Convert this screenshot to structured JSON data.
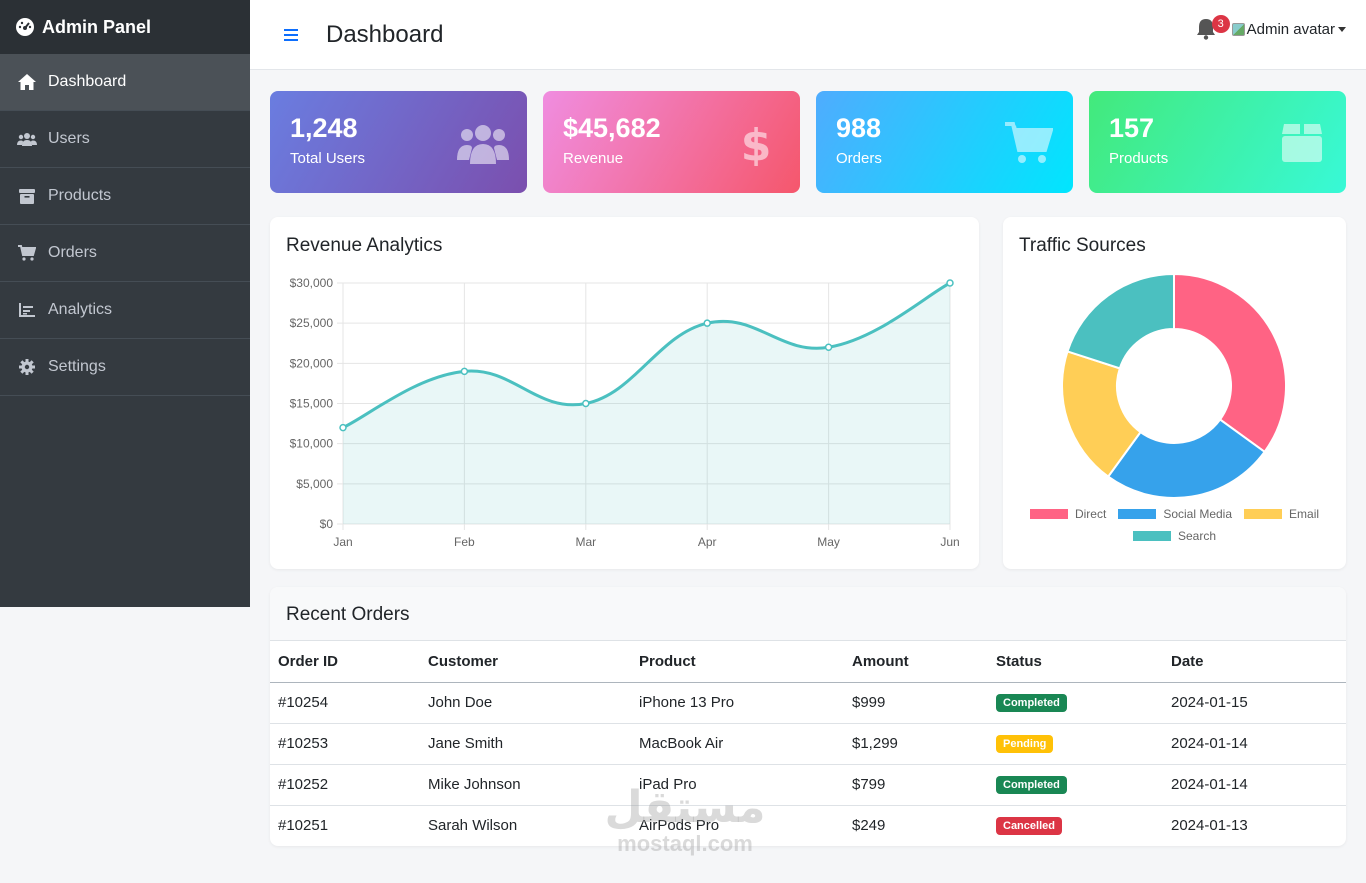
{
  "sidebar": {
    "brand": "Admin Panel",
    "items": [
      {
        "label": "Dashboard",
        "icon": "home-icon",
        "active": true
      },
      {
        "label": "Users",
        "icon": "users-icon"
      },
      {
        "label": "Products",
        "icon": "box-icon"
      },
      {
        "label": "Orders",
        "icon": "cart-icon"
      },
      {
        "label": "Analytics",
        "icon": "chart-icon"
      },
      {
        "label": "Settings",
        "icon": "gear-icon"
      }
    ]
  },
  "header": {
    "title": "Dashboard",
    "notification_count": "3",
    "avatar_alt": "Admin avatar"
  },
  "stats": [
    {
      "value": "1,248",
      "label": "Total Users"
    },
    {
      "value": "$45,682",
      "label": "Revenue"
    },
    {
      "value": "988",
      "label": "Orders"
    },
    {
      "value": "157",
      "label": "Products"
    }
  ],
  "revenue_chart": {
    "title": "Revenue Analytics"
  },
  "traffic_chart": {
    "title": "Traffic Sources"
  },
  "chart_data": [
    {
      "type": "line",
      "title": "Revenue Analytics",
      "categories": [
        "Jan",
        "Feb",
        "Mar",
        "Apr",
        "May",
        "Jun"
      ],
      "values": [
        12000,
        19000,
        15000,
        25000,
        22000,
        30000
      ],
      "ylim": [
        0,
        30000
      ],
      "yticks": [
        "$0",
        "$5,000",
        "$10,000",
        "$15,000",
        "$20,000",
        "$25,000",
        "$30,000"
      ],
      "color": "#4bc0c0",
      "grid": true
    },
    {
      "type": "pie",
      "title": "Traffic Sources",
      "categories": [
        "Direct",
        "Social Media",
        "Email",
        "Search"
      ],
      "values": [
        35,
        25,
        20,
        20
      ],
      "colors": [
        "#ff6384",
        "#36a2eb",
        "#ffce56",
        "#4bc0c0"
      ],
      "legend": "bottom"
    }
  ],
  "orders": {
    "title": "Recent Orders",
    "columns": [
      "Order ID",
      "Customer",
      "Product",
      "Amount",
      "Status",
      "Date"
    ],
    "rows": [
      {
        "id": "#10254",
        "customer": "John Doe",
        "product": "iPhone 13 Pro",
        "amount": "$999",
        "status": "Completed",
        "date": "2024-01-15"
      },
      {
        "id": "#10253",
        "customer": "Jane Smith",
        "product": "MacBook Air",
        "amount": "$1,299",
        "status": "Pending",
        "date": "2024-01-14"
      },
      {
        "id": "#10252",
        "customer": "Mike Johnson",
        "product": "iPad Pro",
        "amount": "$799",
        "status": "Completed",
        "date": "2024-01-14"
      },
      {
        "id": "#10251",
        "customer": "Sarah Wilson",
        "product": "AirPods Pro",
        "amount": "$249",
        "status": "Cancelled",
        "date": "2024-01-13"
      }
    ]
  },
  "watermark": {
    "arabic": "مستقل",
    "latin": "mostaql.com"
  }
}
